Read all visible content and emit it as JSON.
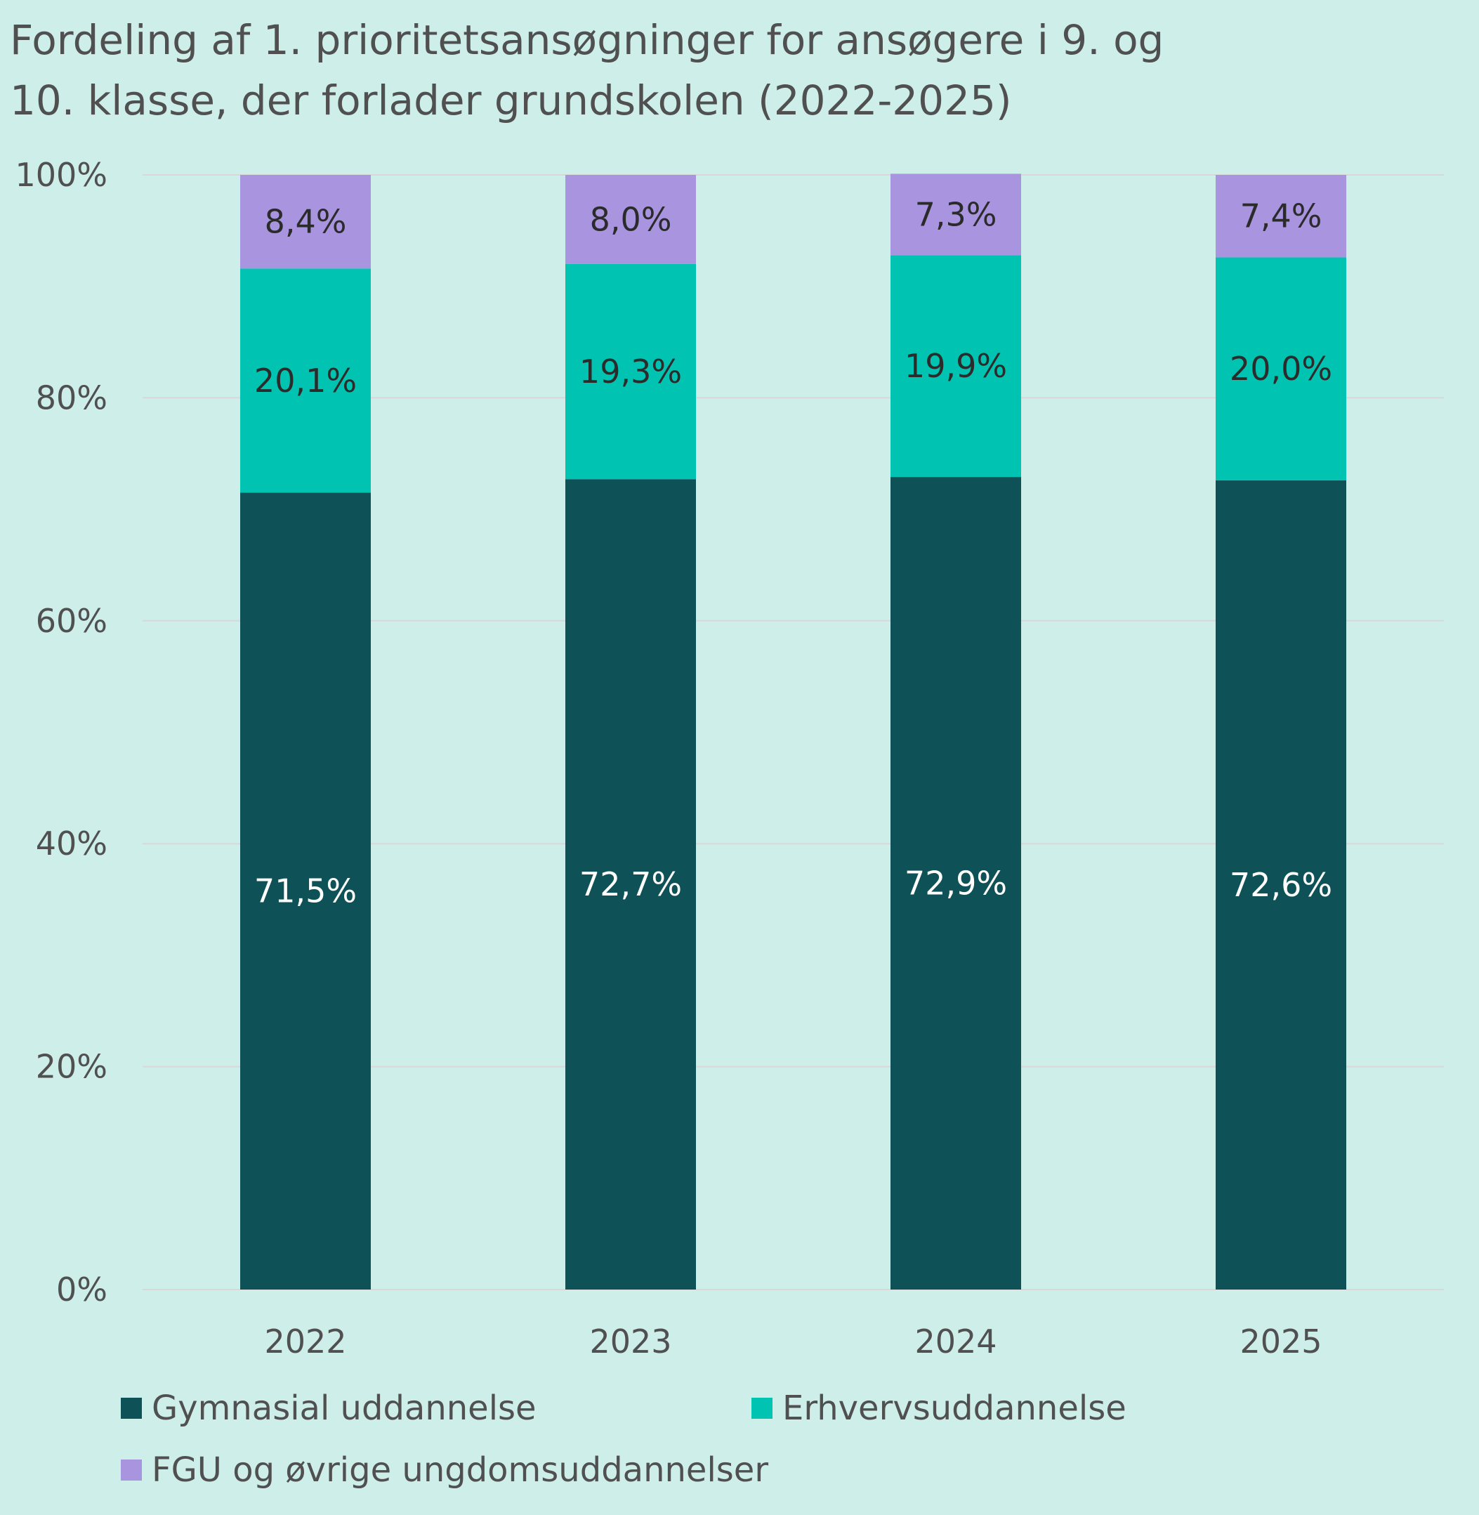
{
  "chart_data": {
    "type": "bar",
    "stacked": true,
    "title_lines": [
      "Fordeling af 1. prioritetsansøgninger for ansøgere i 9. og",
      "10. klasse, der forlader grundskolen (2022-2025)"
    ],
    "categories": [
      "2022",
      "2023",
      "2024",
      "2025"
    ],
    "series": [
      {
        "name": "Gymnasial uddannelse",
        "values": [
          71.5,
          72.7,
          72.9,
          72.6
        ],
        "labels": [
          "71,5%",
          "72,7%",
          "72,9%",
          "72,6%"
        ],
        "color": "#0e5157",
        "label_color": "#ffffff"
      },
      {
        "name": "Erhvervsuddannelse",
        "values": [
          20.1,
          19.3,
          19.9,
          20.0
        ],
        "labels": [
          "20,1%",
          "19,3%",
          "19,9%",
          "20,0%"
        ],
        "color": "#00c4b1",
        "label_color": "#2b2b2b"
      },
      {
        "name": "FGU og øvrige ungdomsuddannelser",
        "values": [
          8.4,
          8.0,
          7.3,
          7.4
        ],
        "labels": [
          "8,4%",
          "8,0%",
          "7,3%",
          "7,4%"
        ],
        "color": "#a994e0",
        "label_color": "#2b2b2b"
      }
    ],
    "yticks": [
      "0%",
      "20%",
      "40%",
      "60%",
      "80%",
      "100%"
    ],
    "ylim": [
      0,
      100
    ],
    "grid": true,
    "legend_position": "bottom",
    "background": "#cdeee9",
    "gridline_color": "#d8d8d8",
    "text_color": "#505050"
  }
}
